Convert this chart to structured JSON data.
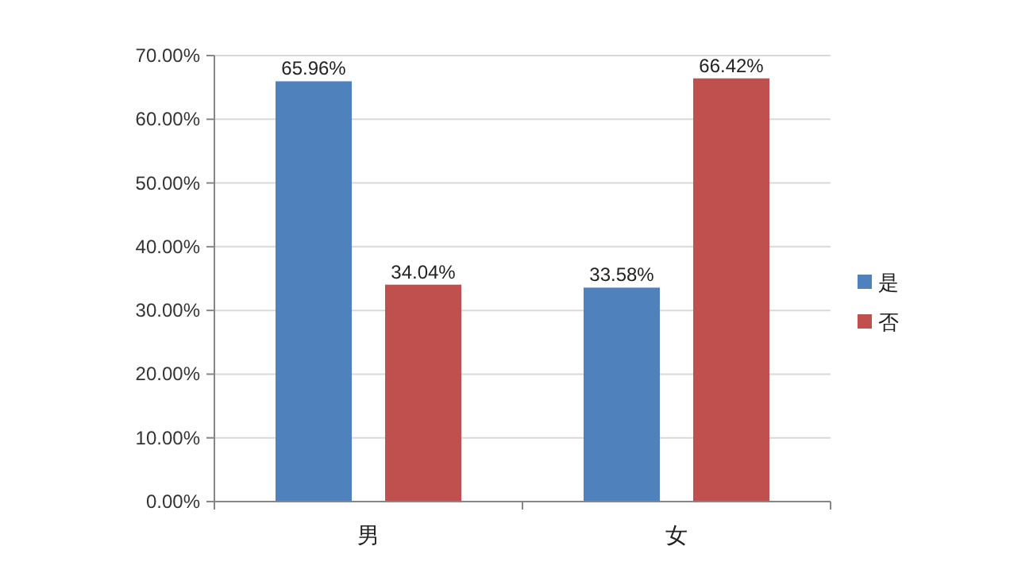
{
  "chart_data": {
    "type": "bar",
    "categories": [
      "男",
      "女"
    ],
    "series": [
      {
        "name": "是",
        "color": "#4f81bd",
        "values": [
          65.96,
          33.58
        ],
        "value_labels": [
          "65.96%",
          "33.58%"
        ]
      },
      {
        "name": "否",
        "color": "#c0504d",
        "values": [
          34.04,
          66.42
        ],
        "value_labels": [
          "34.04%",
          "66.42%"
        ]
      }
    ],
    "ylim": [
      0,
      70
    ],
    "yticks": [
      {
        "value": 0,
        "label": "0.00%"
      },
      {
        "value": 10,
        "label": "10.00%"
      },
      {
        "value": 20,
        "label": "20.00%"
      },
      {
        "value": 30,
        "label": "30.00%"
      },
      {
        "value": 40,
        "label": "40.00%"
      },
      {
        "value": 50,
        "label": "50.00%"
      },
      {
        "value": 60,
        "label": "60.00%"
      },
      {
        "value": 70,
        "label": "70.00%"
      }
    ],
    "grid": "y",
    "legend": "right"
  }
}
